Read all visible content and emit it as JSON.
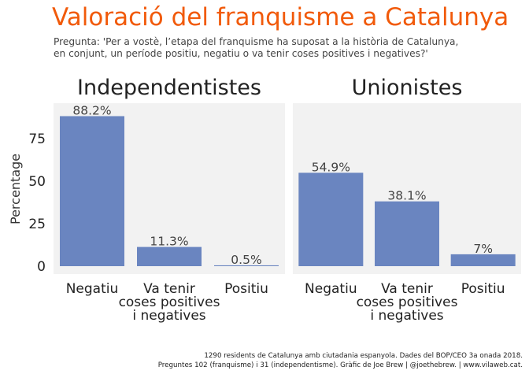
{
  "header": {
    "title": "Valoració del franquisme a Catalunya",
    "subtitle_line1": "Pregunta: 'Per a vostè, l’etapa del franquisme ha suposat a la història de Catalunya,",
    "subtitle_line2": "en conjunt, un període positiu, negatiu o va tenir coses positives i negatives?'"
  },
  "footer": {
    "caption_line1": "1290 residents de Catalunya amb ciutadania espanyola. Dades del BOP/CEO 3a onada 2018.",
    "caption_line2": "Preguntes 102 (franquisme) i 31 (independentisme). Gràfic de Joe Brew | @joethebrew. |  www.vilaweb.cat."
  },
  "colors": {
    "bar": "#6a85c0",
    "panel": "#f2f2f2",
    "title": "#f15a0a"
  },
  "chart_data": {
    "type": "bar",
    "title": "Valoració del franquisme a Catalunya",
    "ylabel": "Percentage",
    "ylim": [
      0,
      96
    ],
    "yticks": [
      "0",
      "25",
      "50",
      "75"
    ],
    "ytick_values": [
      0,
      25,
      50,
      75
    ],
    "categories": [
      [
        "Negatiu"
      ],
      [
        "Va tenir",
        "coses positives",
        "i negatives"
      ],
      [
        "Positiu"
      ]
    ],
    "grid": false,
    "facets": [
      {
        "name": "Independentistes",
        "values": [
          88.2,
          11.3,
          0.5
        ],
        "labels": [
          "88.2%",
          "11.3%",
          "0.5%"
        ]
      },
      {
        "name": "Unionistes",
        "values": [
          54.9,
          38.1,
          7
        ],
        "labels": [
          "54.9%",
          "38.1%",
          "7%"
        ]
      }
    ]
  }
}
